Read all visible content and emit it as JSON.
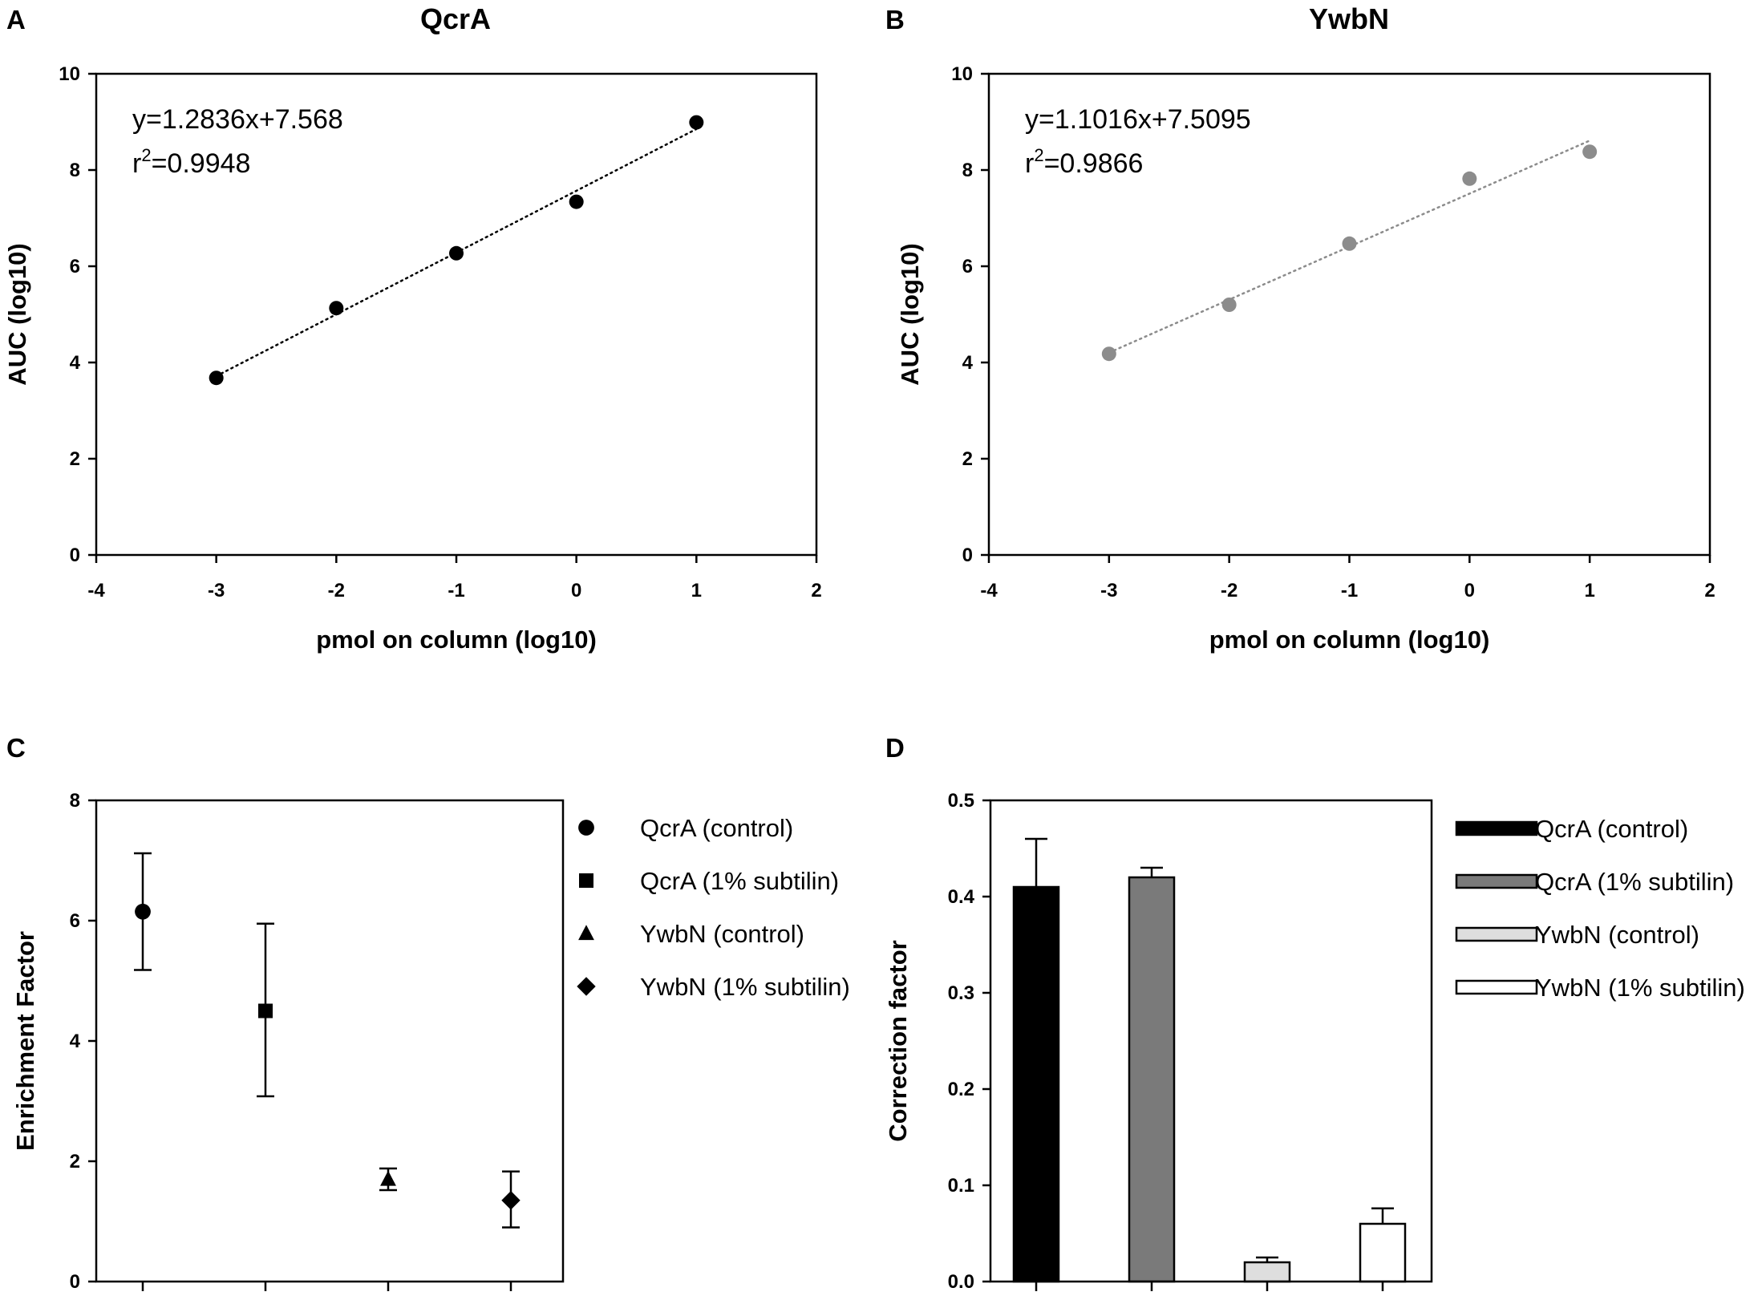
{
  "chart_data": [
    {
      "panel": "A",
      "type": "scatter",
      "title": "QcrA",
      "xlabel": "pmol on column (log10)",
      "ylabel": "AUC (log10)",
      "xlim": [
        -4,
        2
      ],
      "ylim": [
        0,
        10
      ],
      "xticks": [
        -4,
        -3,
        -2,
        -1,
        0,
        1,
        2
      ],
      "yticks": [
        0,
        2,
        4,
        6,
        8,
        10
      ],
      "points": [
        {
          "x": -3,
          "y": 3.68
        },
        {
          "x": -2,
          "y": 5.13
        },
        {
          "x": -1,
          "y": 6.27
        },
        {
          "x": 0,
          "y": 7.34
        },
        {
          "x": 1,
          "y": 8.99
        }
      ],
      "fit": {
        "slope": 1.2836,
        "intercept": 7.568,
        "x_range": [
          -3,
          1
        ]
      },
      "equation": "y=1.2836x+7.568",
      "r2_prefix": "r",
      "r2_sup": "2",
      "r2_value": "=0.9948",
      "color": "#000000"
    },
    {
      "panel": "B",
      "type": "scatter",
      "title": "YwbN",
      "xlabel": "pmol on column (log10)",
      "ylabel": "AUC (log10)",
      "xlim": [
        -4,
        2
      ],
      "ylim": [
        0,
        10
      ],
      "xticks": [
        -4,
        -3,
        -2,
        -1,
        0,
        1,
        2
      ],
      "yticks": [
        0,
        2,
        4,
        6,
        8,
        10
      ],
      "points": [
        {
          "x": -3,
          "y": 4.18
        },
        {
          "x": -2,
          "y": 5.2
        },
        {
          "x": -1,
          "y": 6.47
        },
        {
          "x": 0,
          "y": 7.82
        },
        {
          "x": 1,
          "y": 8.38
        }
      ],
      "fit": {
        "slope": 1.1016,
        "intercept": 7.5095,
        "x_range": [
          -3,
          1
        ]
      },
      "equation": "y=1.1016x+7.5095",
      "r2_prefix": "r",
      "r2_sup": "2",
      "r2_value": "=0.9866",
      "color": "#8c8c8c"
    },
    {
      "panel": "C",
      "type": "scatter",
      "ylabel": "Enrichment Factor",
      "ylim": [
        0,
        8
      ],
      "yticks": [
        0,
        2,
        4,
        6,
        8
      ],
      "series": [
        {
          "name": "QcrA (control)",
          "marker": "circle",
          "value": 6.15,
          "err_low": 5.18,
          "err_high": 7.12
        },
        {
          "name": "QcrA (1% subtilin)",
          "marker": "square",
          "value": 4.5,
          "err_low": 3.08,
          "err_high": 5.95
        },
        {
          "name": "YwbN (control)",
          "marker": "triangle",
          "value": 1.7,
          "err_low": 1.52,
          "err_high": 1.88
        },
        {
          "name": "YwbN (1% subtilin)",
          "marker": "diamond",
          "value": 1.35,
          "err_low": 0.9,
          "err_high": 1.83
        }
      ]
    },
    {
      "panel": "D",
      "type": "bar",
      "ylabel": "Correction factor",
      "ylim": [
        0,
        0.5
      ],
      "yticks": [
        "0.0",
        "0.1",
        "0.2",
        "0.3",
        "0.4",
        "0.5"
      ],
      "series": [
        {
          "name": "QcrA (control)",
          "value": 0.41,
          "err_high": 0.46,
          "color": "#000000"
        },
        {
          "name": "QcrA (1% subtilin)",
          "value": 0.42,
          "err_high": 0.43,
          "color": "#7a7a7a"
        },
        {
          "name": "YwbN (control)",
          "value": 0.02,
          "err_high": 0.025,
          "color": "#dedede"
        },
        {
          "name": "YwbN (1% subtilin)",
          "value": 0.06,
          "err_high": 0.076,
          "color": "#ffffff"
        }
      ]
    }
  ]
}
